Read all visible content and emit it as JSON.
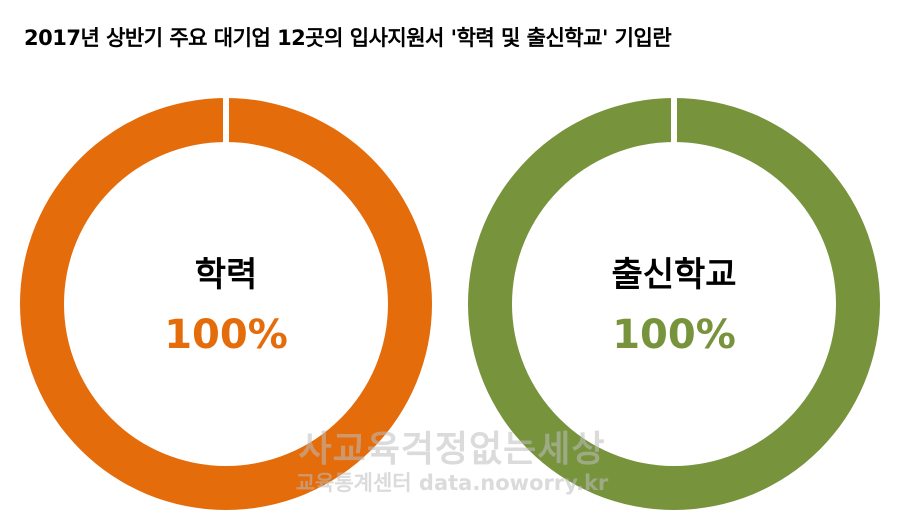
{
  "title": "2017년 상반기 주요 대기업 12곳의 입사지원서 '학력 및 출신학교' 기입란",
  "chart_data": [
    {
      "type": "pie",
      "donut": true,
      "label": "학력",
      "value_label": "100%",
      "values": [
        100
      ],
      "color": "#E46C0A"
    },
    {
      "type": "pie",
      "donut": true,
      "label": "출신학교",
      "value_label": "100%",
      "values": [
        100
      ],
      "color": "#77933C"
    }
  ],
  "watermark": {
    "main": "사교육걱정없는세상",
    "sub": "교육통계센터 data.noworry.kr"
  }
}
